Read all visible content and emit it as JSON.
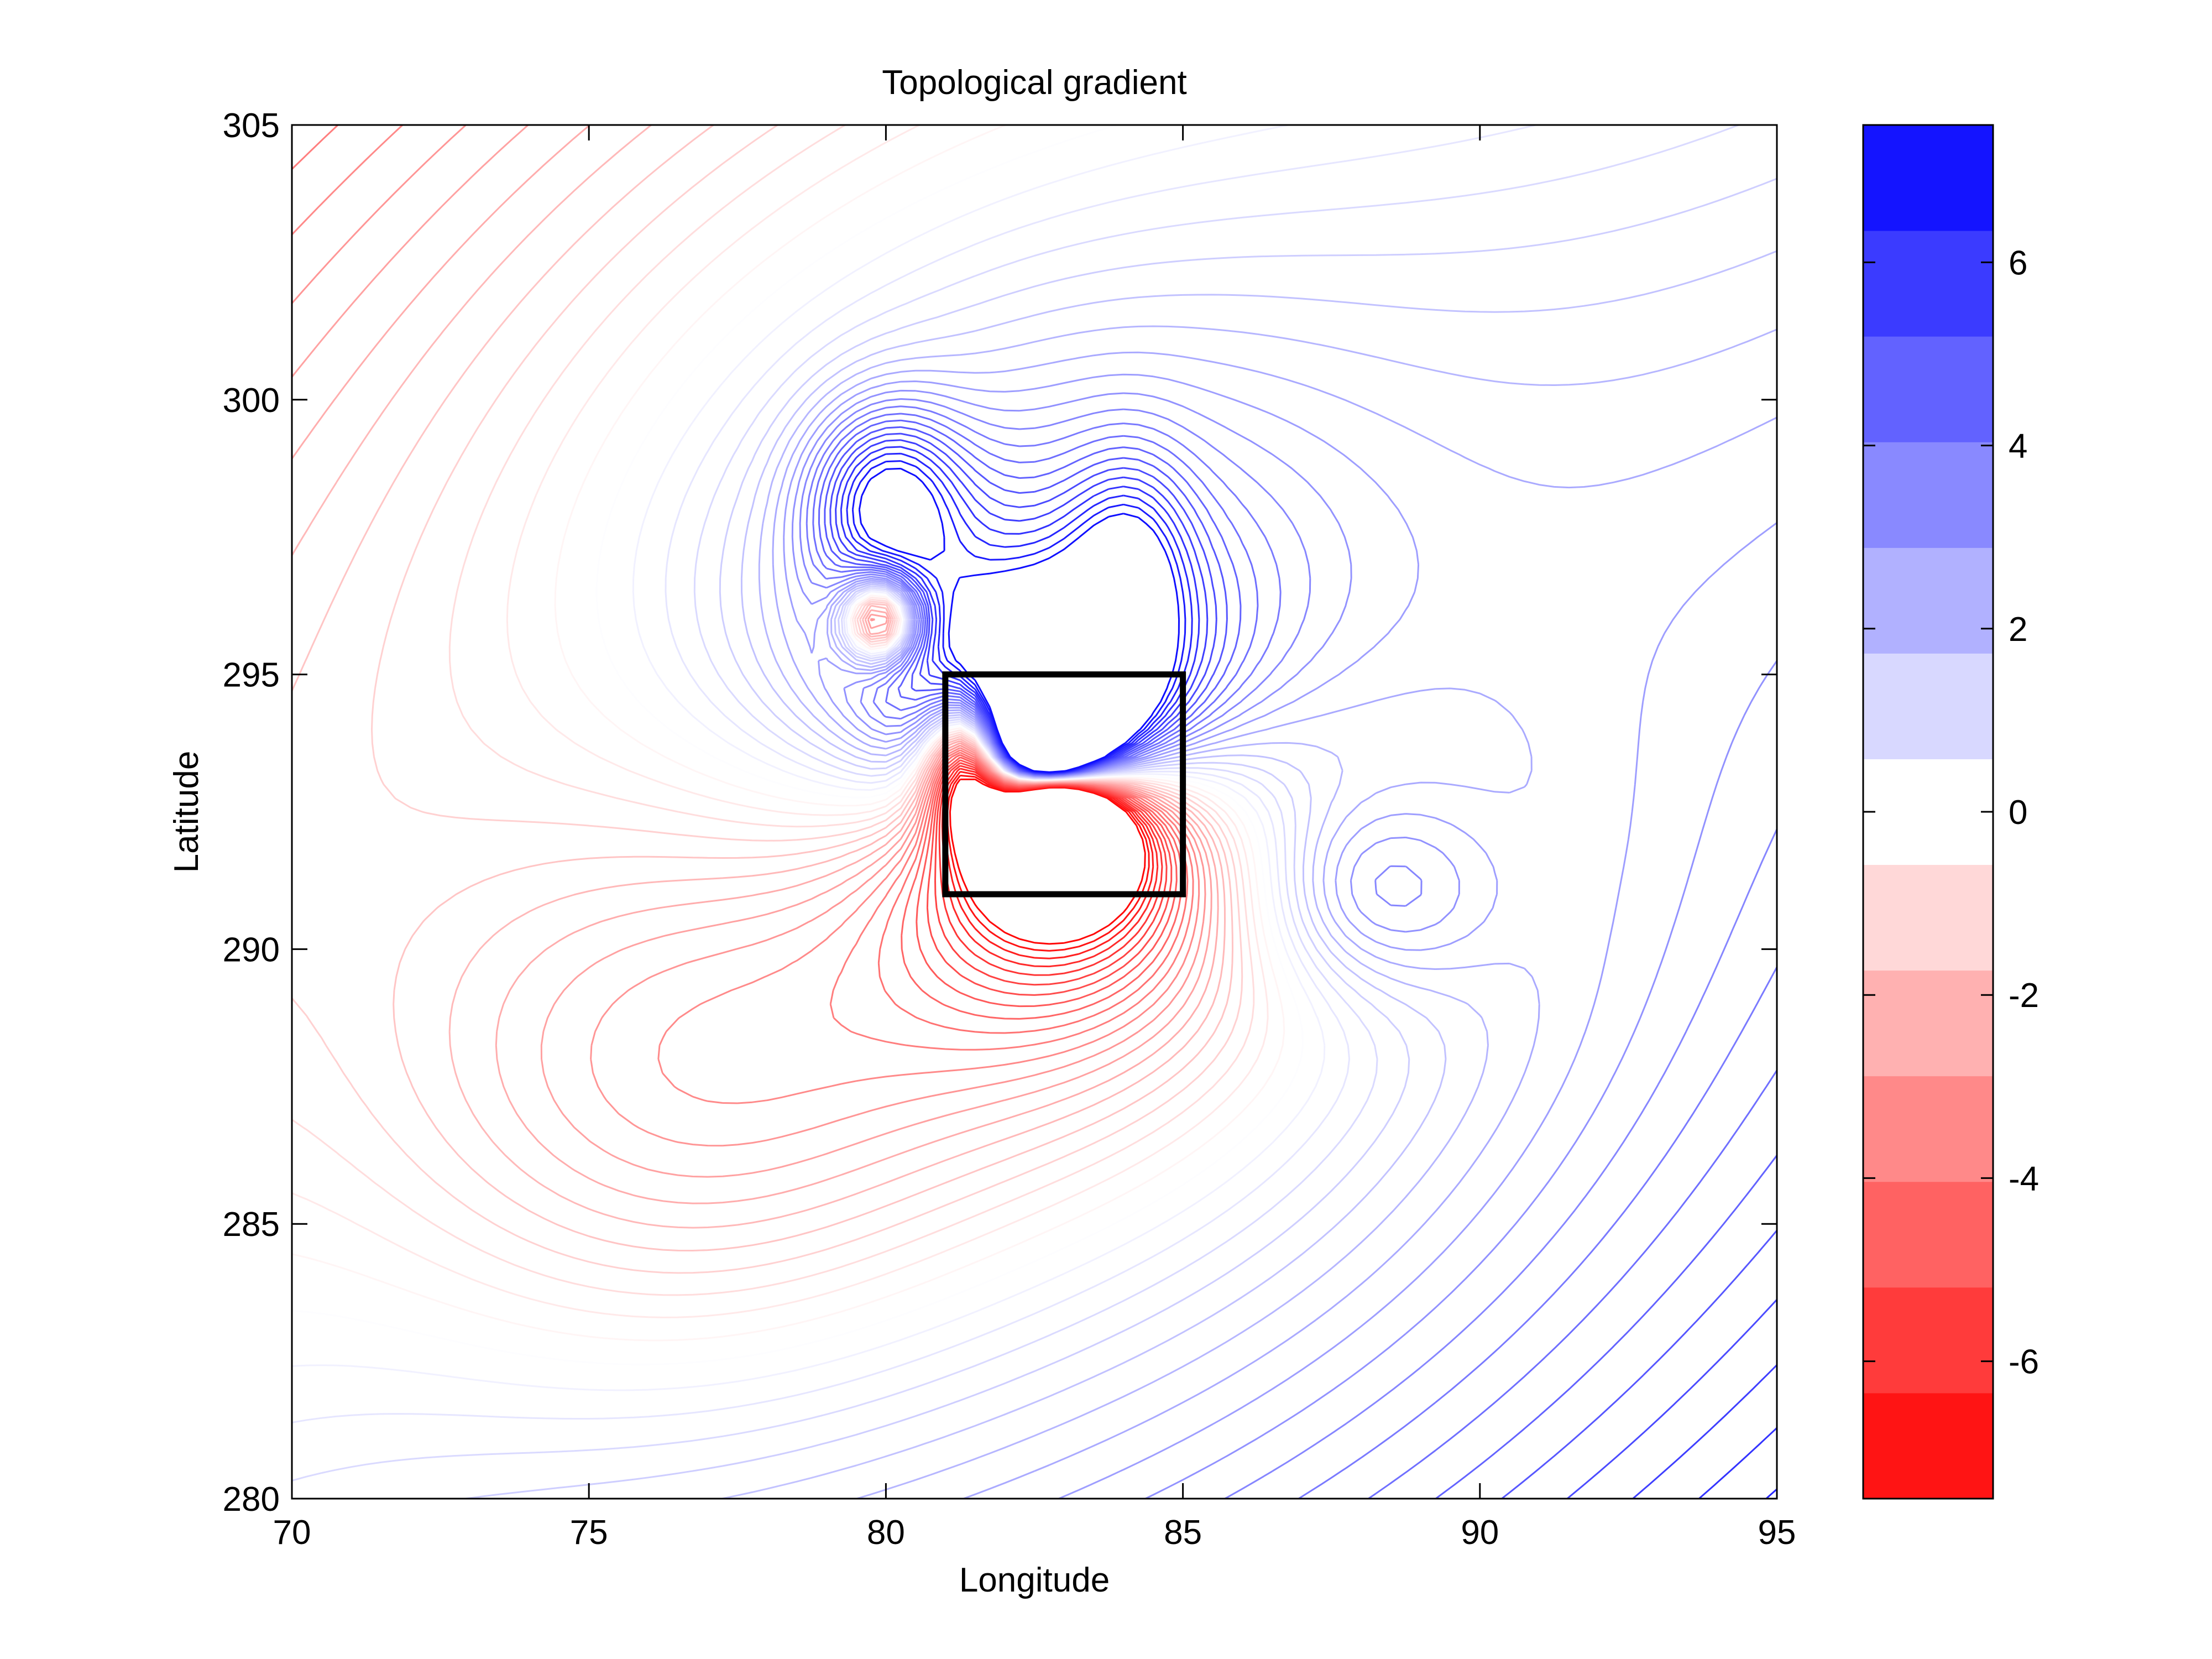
{
  "chart_data": {
    "type": "contour",
    "title": "Topological gradient",
    "xlabel": "Longitude",
    "ylabel": "Latitude",
    "xlim": [
      70,
      95
    ],
    "ylim": [
      280,
      305
    ],
    "xticks": [
      70,
      75,
      80,
      85,
      90,
      95
    ],
    "yticks": [
      280,
      285,
      290,
      295,
      300,
      305
    ],
    "grid": false,
    "colormap": {
      "name": "red-white-blue",
      "negative_color": "#ff0000",
      "zero_color": "#ffffff",
      "positive_color": "#0000ff",
      "levels": 13
    },
    "colorbar": {
      "placement": "right",
      "range": [
        -7.5,
        7.5
      ],
      "ticks": [
        -6,
        -4,
        -2,
        0,
        2,
        4,
        6
      ]
    },
    "features": [
      {
        "kind": "positive-source",
        "x": 82.8,
        "y": 293.1,
        "value": 7.5
      },
      {
        "kind": "positive-lobe",
        "x": 80,
        "y": 298,
        "value": 4
      },
      {
        "kind": "negative-minimum",
        "x": 80,
        "y": 296,
        "value": -3
      },
      {
        "kind": "negative-minimum",
        "x": 81.5,
        "y": 293.5,
        "value": -6.5
      },
      {
        "kind": "weak-lobe",
        "x": 88,
        "y": 291,
        "value": 0.5
      }
    ],
    "highlight_box": {
      "x": [
        81,
        85
      ],
      "y": [
        291,
        295
      ],
      "color": "#000000"
    }
  }
}
